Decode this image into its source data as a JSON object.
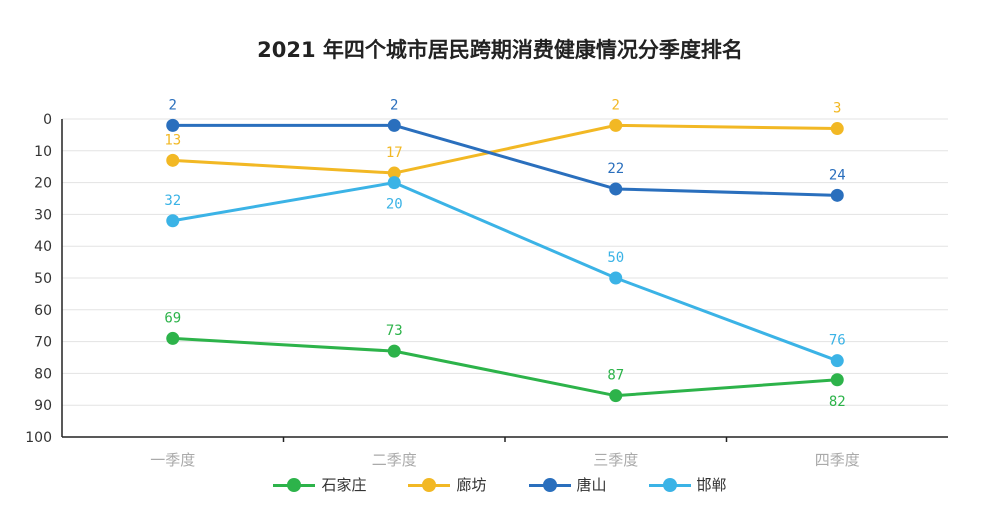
{
  "chart_data": {
    "type": "line",
    "title": "2021 年四个城市居民跨期消费健康情况分季度排名",
    "categories": [
      "一季度",
      "二季度",
      "三季度",
      "四季度"
    ],
    "y_ticks": [
      "0",
      "10",
      "20",
      "30",
      "40",
      "50",
      "60",
      "70",
      "80",
      "90",
      "100"
    ],
    "ylim": [
      0,
      100
    ],
    "y_inverted": true,
    "grid": true,
    "legend_position": "bottom",
    "series": [
      {
        "name": "石家庄",
        "color": "#2db34a",
        "values": [
          69,
          73,
          87,
          82
        ],
        "labels": [
          "69",
          "73",
          "87",
          "82"
        ],
        "label_pos": [
          "above",
          "above",
          "above",
          "below"
        ]
      },
      {
        "name": "廊坊",
        "color": "#f2b824",
        "values": [
          13,
          17,
          2,
          3
        ],
        "labels": [
          "13",
          "17",
          "2",
          "3"
        ],
        "label_pos": [
          "above",
          "above",
          "above",
          "above"
        ]
      },
      {
        "name": "唐山",
        "color": "#2a6fbd",
        "values": [
          2,
          2,
          22,
          24
        ],
        "labels": [
          "2",
          "2",
          "22",
          "24"
        ],
        "label_pos": [
          "above",
          "above",
          "above",
          "above"
        ]
      },
      {
        "name": "邯郸",
        "color": "#3bb3e6",
        "values": [
          32,
          20,
          50,
          76
        ],
        "labels": [
          "32",
          "20",
          "50",
          "76"
        ],
        "label_pos": [
          "above",
          "below",
          "above",
          "above"
        ]
      }
    ]
  }
}
